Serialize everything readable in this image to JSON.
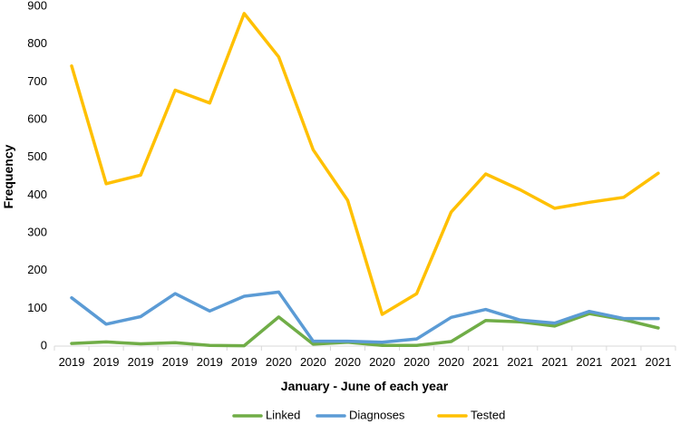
{
  "chart_data": {
    "type": "line",
    "xlabel": "January - June of each year",
    "ylabel": "Frequency",
    "ylim": [
      0,
      900
    ],
    "y_ticks": [
      "0",
      "100",
      "200",
      "300",
      "400",
      "500",
      "600",
      "700",
      "800",
      "900"
    ],
    "categories": [
      "2019",
      "2019",
      "2019",
      "2019",
      "2019",
      "2019",
      "2020",
      "2020",
      "2020",
      "2020",
      "2020",
      "2020",
      "2021",
      "2021",
      "2021",
      "2021",
      "2021",
      "2021"
    ],
    "grid": false,
    "legend_position": "bottom",
    "series": [
      {
        "name": "Linked",
        "color": "#70AD47",
        "values": [
          7,
          11,
          6,
          9,
          2,
          1,
          77,
          5,
          10,
          2,
          2,
          12,
          68,
          64,
          53,
          86,
          70,
          48
        ]
      },
      {
        "name": "Diagnoses",
        "color": "#5B9BD5",
        "values": [
          128,
          58,
          78,
          139,
          93,
          132,
          143,
          13,
          13,
          10,
          19,
          76,
          97,
          69,
          61,
          92,
          73,
          73
        ]
      },
      {
        "name": "Tested",
        "color": "#FFC000",
        "values": [
          742,
          430,
          453,
          678,
          644,
          881,
          766,
          520,
          386,
          84,
          139,
          355,
          456,
          414,
          365,
          381,
          394,
          458
        ]
      }
    ]
  }
}
